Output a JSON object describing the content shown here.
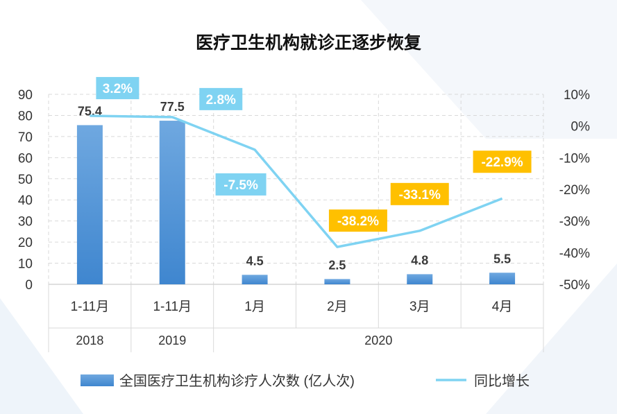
{
  "chart_data": {
    "type": "bar",
    "title": "医疗卫生机构就诊正逐步恢复",
    "categories": [
      "1-11月",
      "1-11月",
      "1月",
      "2月",
      "3月",
      "4月"
    ],
    "year_groups": [
      {
        "label": "2018",
        "span": [
          0,
          0
        ]
      },
      {
        "label": "2019",
        "span": [
          1,
          1
        ]
      },
      {
        "label": "2020",
        "span": [
          2,
          5
        ]
      }
    ],
    "series": [
      {
        "name": "全国医疗卫生机构诊疗人次数 (亿人次)",
        "type": "bar",
        "axis": "left",
        "values": [
          75.4,
          77.5,
          4.5,
          2.5,
          4.8,
          5.5
        ],
        "labels": [
          "75.4",
          "77.5",
          "4.5",
          "2.5",
          "4.8",
          "5.5"
        ],
        "color": "#4a8fd6"
      },
      {
        "name": "同比增长",
        "type": "line",
        "axis": "right",
        "values": [
          3.2,
          2.8,
          -7.5,
          -38.2,
          -33.1,
          -22.9
        ],
        "labels": [
          "3.2%",
          "2.8%",
          "-7.5%",
          "-38.2%",
          "-33.1%",
          "-22.9%"
        ],
        "color": "#7fd3f2",
        "label_colors": [
          "#7fd3f2",
          "#7fd3f2",
          "#7fd3f2",
          "#ffc000",
          "#ffc000",
          "#ffc000"
        ]
      }
    ],
    "y_left": {
      "min": 0,
      "max": 90,
      "ticks": [
        "0",
        "10",
        "20",
        "30",
        "40",
        "50",
        "60",
        "70",
        "80",
        "90"
      ]
    },
    "y_right": {
      "min": -50,
      "max": 10,
      "ticks": [
        "-50%",
        "-40%",
        "-30%",
        "-20%",
        "-10%",
        "0%",
        "10%"
      ]
    },
    "grid": true,
    "legend_position": "bottom"
  }
}
